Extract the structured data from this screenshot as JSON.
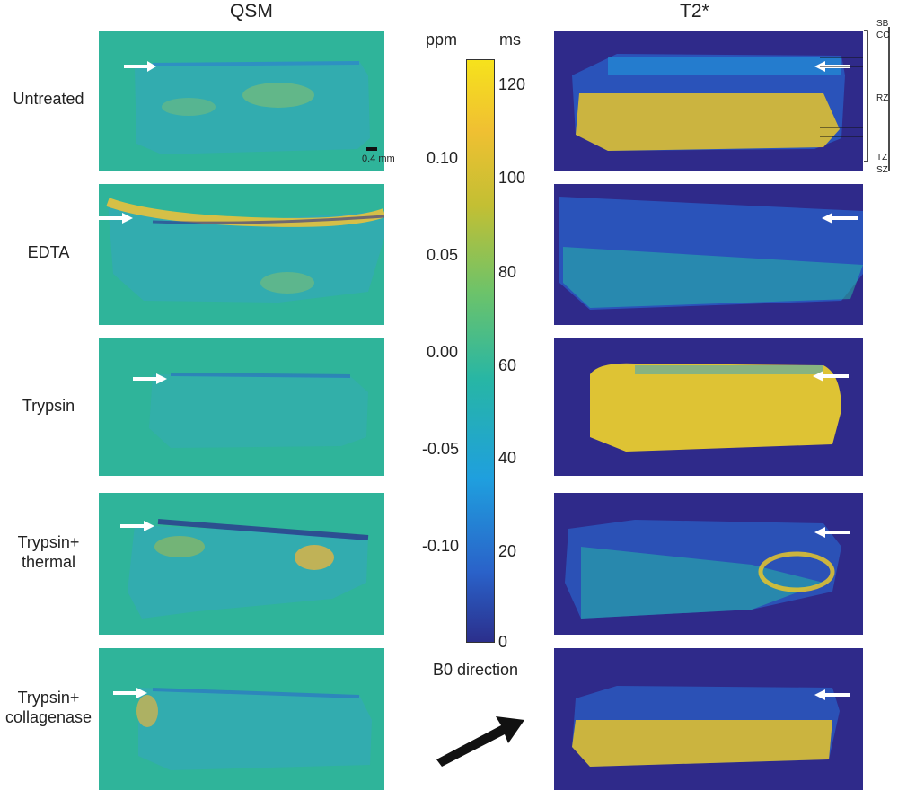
{
  "columns": {
    "qsm": "QSM",
    "t2": "T2*"
  },
  "rows": [
    {
      "label": "Untreated"
    },
    {
      "label": "EDTA"
    },
    {
      "label": "Trypsin"
    },
    {
      "label": "Trypsin+\nthermal"
    },
    {
      "label": "Trypsin+\ncollagenase"
    }
  ],
  "colorbar": {
    "left_unit": "ppm",
    "right_unit": "ms",
    "left_ticks": [
      "0.10",
      "0.05",
      "0.00",
      "-0.05",
      "-0.10"
    ],
    "right_ticks": [
      "120",
      "100",
      "80",
      "60",
      "40",
      "20",
      "0"
    ],
    "colormap_stops": [
      "#2b2f8c",
      "#2a62c9",
      "#1f9fde",
      "#27b6a5",
      "#6cc36a",
      "#c3bf33",
      "#f0c032",
      "#f6e21c"
    ]
  },
  "scale_bar": {
    "label": "0.4 mm"
  },
  "zones": [
    "SB",
    "CC",
    "RZ",
    "TZ",
    "SZ"
  ],
  "b0_label": "B0 direction",
  "colors": {
    "qsm_bg": "#2fb49a",
    "t2_bg": "#2f2a8a",
    "arrow": "#111111"
  }
}
